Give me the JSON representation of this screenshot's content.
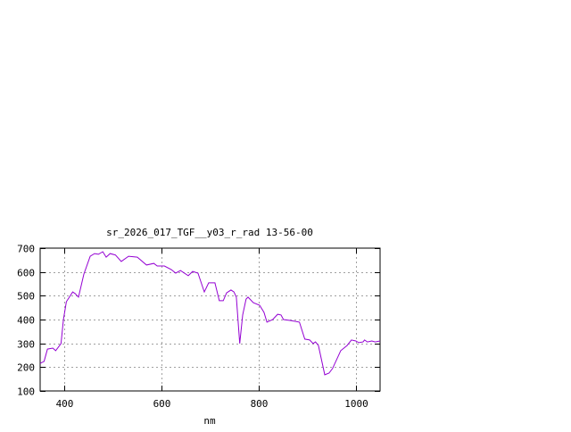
{
  "chart_data": {
    "type": "line",
    "title": "sr_2026_017_TGF__y03_r_rad 13-56-00",
    "xlabel": "nm",
    "ylabel": "",
    "xlim": [
      350,
      1050
    ],
    "ylim": [
      100,
      700
    ],
    "xticks": [
      400,
      600,
      800,
      1000
    ],
    "yticks": [
      100,
      200,
      300,
      400,
      500,
      600,
      700
    ],
    "grid": true,
    "line_color": "#9400d3",
    "series": [
      {
        "x": [
          350,
          358,
          365,
          376,
          382,
          393,
          398,
          404,
          417,
          422,
          429,
          440,
          453,
          462,
          470,
          479,
          486,
          494,
          505,
          517,
          532,
          550,
          569,
          584,
          591,
          606,
          620,
          629,
          639,
          655,
          664,
          675,
          688,
          697,
          710,
          719,
          727,
          734,
          743,
          749,
          754,
          761,
          767,
          774,
          778,
          789,
          802,
          811,
          817,
          829,
          839,
          846,
          851,
          866,
          884,
          895,
          905,
          912,
          917,
          923,
          936,
          945,
          952,
          969,
          982,
          991,
          1000,
          1006,
          1015,
          1018,
          1024,
          1033,
          1040,
          1050
        ],
        "y": [
          216,
          224,
          276,
          280,
          269,
          299,
          400,
          475,
          516,
          509,
          494,
          591,
          666,
          677,
          674,
          685,
          662,
          677,
          671,
          644,
          666,
          662,
          629,
          636,
          625,
          625,
          610,
          595,
          606,
          584,
          602,
          595,
          516,
          554,
          554,
          479,
          479,
          512,
          524,
          516,
          494,
          299,
          419,
          486,
          494,
          471,
          460,
          430,
          389,
          400,
          422,
          419,
          400,
          396,
          389,
          318,
          314,
          299,
          306,
          291,
          168,
          175,
          194,
          269,
          291,
          314,
          310,
          303,
          306,
          314,
          306,
          310,
          306,
          310
        ]
      }
    ]
  }
}
